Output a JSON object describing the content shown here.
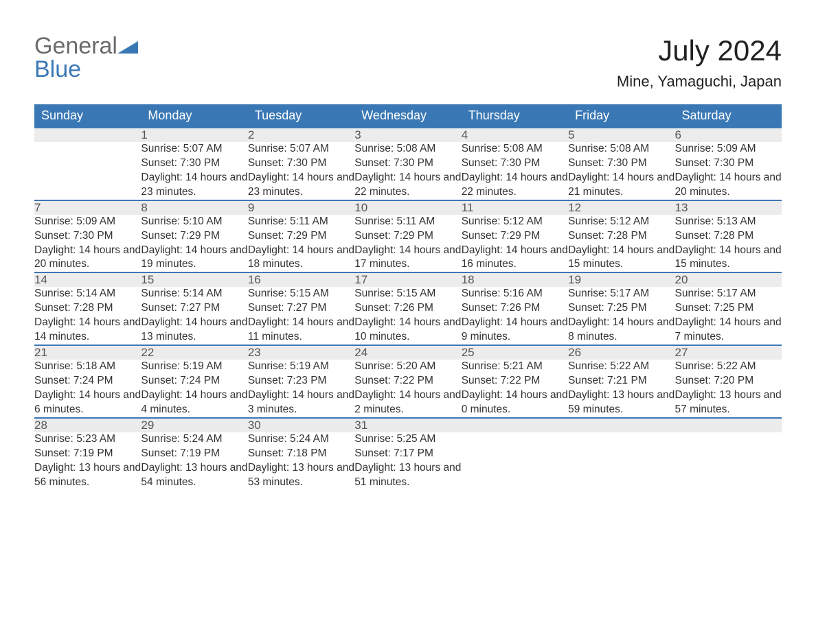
{
  "brand": {
    "part1": "General",
    "part2": "Blue"
  },
  "title": "July 2024",
  "subtitle": "Mine, Yamaguchi, Japan",
  "colors": {
    "header_bg": "#3a78b5",
    "daynum_bg": "#ececec",
    "row_divider": "#3a78b5",
    "text": "#333333",
    "brand_gray": "#6b6b6b",
    "brand_blue": "#3a78b5",
    "page_bg": "#ffffff"
  },
  "typography": {
    "title_fontsize": 42,
    "subtitle_fontsize": 22,
    "weekday_fontsize": 18,
    "daynum_fontsize": 17,
    "detail_fontsize": 15.5,
    "logo_fontsize": 34
  },
  "labels": {
    "sunrise": "Sunrise:",
    "sunset": "Sunset:",
    "daylight": "Daylight:"
  },
  "weekdays": [
    "Sunday",
    "Monday",
    "Tuesday",
    "Wednesday",
    "Thursday",
    "Friday",
    "Saturday"
  ],
  "month_start_weekday": 1,
  "days": [
    {
      "n": 1,
      "sunrise": "5:07 AM",
      "sunset": "7:30 PM",
      "daylight": "14 hours and 23 minutes."
    },
    {
      "n": 2,
      "sunrise": "5:07 AM",
      "sunset": "7:30 PM",
      "daylight": "14 hours and 23 minutes."
    },
    {
      "n": 3,
      "sunrise": "5:08 AM",
      "sunset": "7:30 PM",
      "daylight": "14 hours and 22 minutes."
    },
    {
      "n": 4,
      "sunrise": "5:08 AM",
      "sunset": "7:30 PM",
      "daylight": "14 hours and 22 minutes."
    },
    {
      "n": 5,
      "sunrise": "5:08 AM",
      "sunset": "7:30 PM",
      "daylight": "14 hours and 21 minutes."
    },
    {
      "n": 6,
      "sunrise": "5:09 AM",
      "sunset": "7:30 PM",
      "daylight": "14 hours and 20 minutes."
    },
    {
      "n": 7,
      "sunrise": "5:09 AM",
      "sunset": "7:30 PM",
      "daylight": "14 hours and 20 minutes."
    },
    {
      "n": 8,
      "sunrise": "5:10 AM",
      "sunset": "7:29 PM",
      "daylight": "14 hours and 19 minutes."
    },
    {
      "n": 9,
      "sunrise": "5:11 AM",
      "sunset": "7:29 PM",
      "daylight": "14 hours and 18 minutes."
    },
    {
      "n": 10,
      "sunrise": "5:11 AM",
      "sunset": "7:29 PM",
      "daylight": "14 hours and 17 minutes."
    },
    {
      "n": 11,
      "sunrise": "5:12 AM",
      "sunset": "7:29 PM",
      "daylight": "14 hours and 16 minutes."
    },
    {
      "n": 12,
      "sunrise": "5:12 AM",
      "sunset": "7:28 PM",
      "daylight": "14 hours and 15 minutes."
    },
    {
      "n": 13,
      "sunrise": "5:13 AM",
      "sunset": "7:28 PM",
      "daylight": "14 hours and 15 minutes."
    },
    {
      "n": 14,
      "sunrise": "5:14 AM",
      "sunset": "7:28 PM",
      "daylight": "14 hours and 14 minutes."
    },
    {
      "n": 15,
      "sunrise": "5:14 AM",
      "sunset": "7:27 PM",
      "daylight": "14 hours and 13 minutes."
    },
    {
      "n": 16,
      "sunrise": "5:15 AM",
      "sunset": "7:27 PM",
      "daylight": "14 hours and 11 minutes."
    },
    {
      "n": 17,
      "sunrise": "5:15 AM",
      "sunset": "7:26 PM",
      "daylight": "14 hours and 10 minutes."
    },
    {
      "n": 18,
      "sunrise": "5:16 AM",
      "sunset": "7:26 PM",
      "daylight": "14 hours and 9 minutes."
    },
    {
      "n": 19,
      "sunrise": "5:17 AM",
      "sunset": "7:25 PM",
      "daylight": "14 hours and 8 minutes."
    },
    {
      "n": 20,
      "sunrise": "5:17 AM",
      "sunset": "7:25 PM",
      "daylight": "14 hours and 7 minutes."
    },
    {
      "n": 21,
      "sunrise": "5:18 AM",
      "sunset": "7:24 PM",
      "daylight": "14 hours and 6 minutes."
    },
    {
      "n": 22,
      "sunrise": "5:19 AM",
      "sunset": "7:24 PM",
      "daylight": "14 hours and 4 minutes."
    },
    {
      "n": 23,
      "sunrise": "5:19 AM",
      "sunset": "7:23 PM",
      "daylight": "14 hours and 3 minutes."
    },
    {
      "n": 24,
      "sunrise": "5:20 AM",
      "sunset": "7:22 PM",
      "daylight": "14 hours and 2 minutes."
    },
    {
      "n": 25,
      "sunrise": "5:21 AM",
      "sunset": "7:22 PM",
      "daylight": "14 hours and 0 minutes."
    },
    {
      "n": 26,
      "sunrise": "5:22 AM",
      "sunset": "7:21 PM",
      "daylight": "13 hours and 59 minutes."
    },
    {
      "n": 27,
      "sunrise": "5:22 AM",
      "sunset": "7:20 PM",
      "daylight": "13 hours and 57 minutes."
    },
    {
      "n": 28,
      "sunrise": "5:23 AM",
      "sunset": "7:19 PM",
      "daylight": "13 hours and 56 minutes."
    },
    {
      "n": 29,
      "sunrise": "5:24 AM",
      "sunset": "7:19 PM",
      "daylight": "13 hours and 54 minutes."
    },
    {
      "n": 30,
      "sunrise": "5:24 AM",
      "sunset": "7:18 PM",
      "daylight": "13 hours and 53 minutes."
    },
    {
      "n": 31,
      "sunrise": "5:25 AM",
      "sunset": "7:17 PM",
      "daylight": "13 hours and 51 minutes."
    }
  ]
}
